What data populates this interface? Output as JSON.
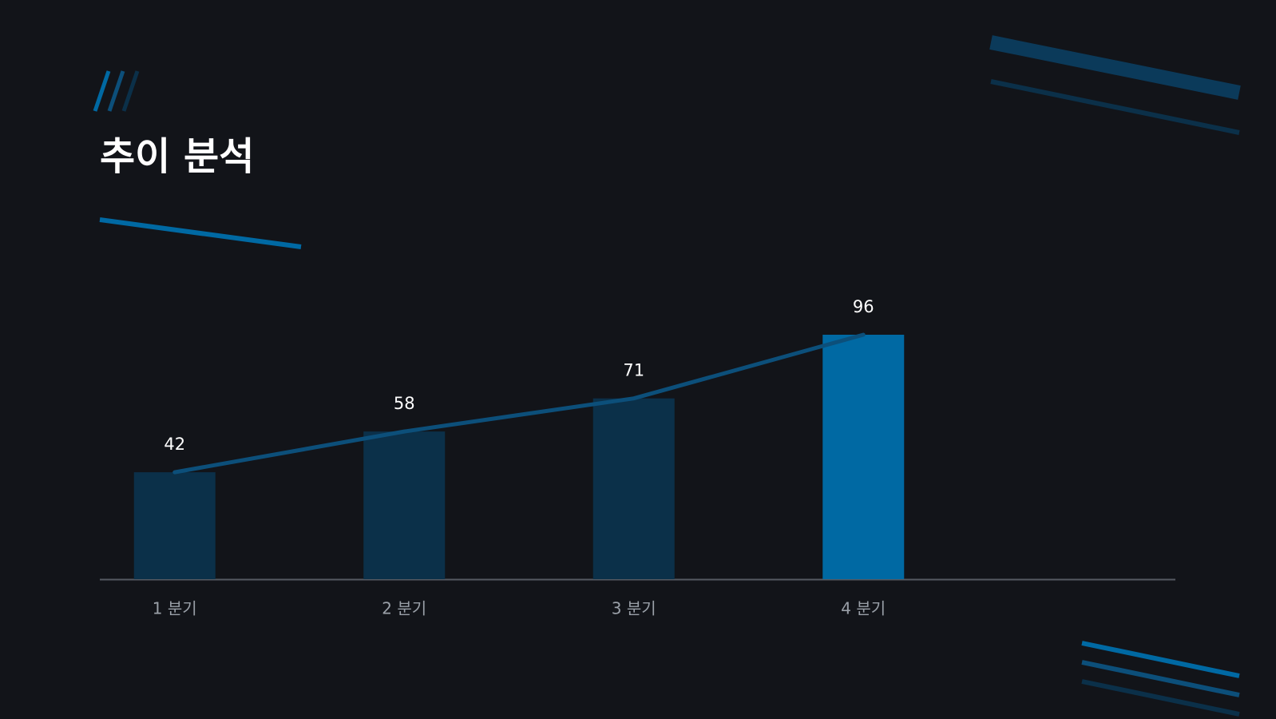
{
  "chart_data": {
    "type": "bar",
    "title": "추이 분석",
    "categories": [
      "1 분기",
      "2 분기",
      "3 분기",
      "4 분기"
    ],
    "values": [
      42,
      58,
      71,
      96
    ],
    "colors": [
      "#0b3049",
      "#0b3049",
      "#0b3049",
      "#0069a3"
    ],
    "line_color": "#0c4f7a",
    "ylim": [
      0,
      96
    ]
  }
}
